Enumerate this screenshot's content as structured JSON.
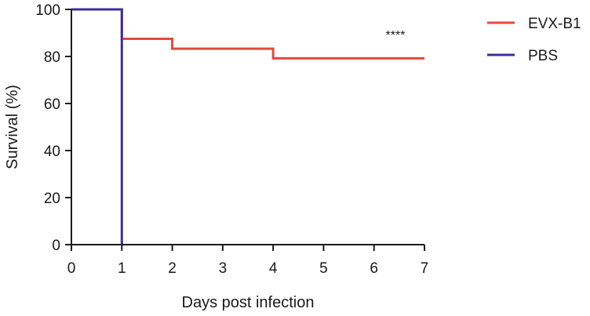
{
  "chart_data": {
    "type": "line",
    "step": true,
    "title": "",
    "xlabel": "Days post infection",
    "ylabel": "Survival (%)",
    "xlim": [
      0,
      7
    ],
    "ylim": [
      0,
      100
    ],
    "x_ticks": [
      "0",
      "1",
      "2",
      "3",
      "4",
      "5",
      "6",
      "7"
    ],
    "y_ticks": [
      "0",
      "20",
      "40",
      "60",
      "80",
      "100"
    ],
    "grid": false,
    "legend_position": "top-right",
    "annotation": "****",
    "series": [
      {
        "name": "EVX-B1",
        "color": "#e8483b",
        "x": [
          0,
          1,
          2,
          4,
          7
        ],
        "y": [
          100,
          87.5,
          83.3,
          79.2,
          79.2
        ]
      },
      {
        "name": "PBS",
        "color": "#3a2f9a",
        "x": [
          0,
          1
        ],
        "y": [
          100,
          0
        ]
      }
    ]
  }
}
